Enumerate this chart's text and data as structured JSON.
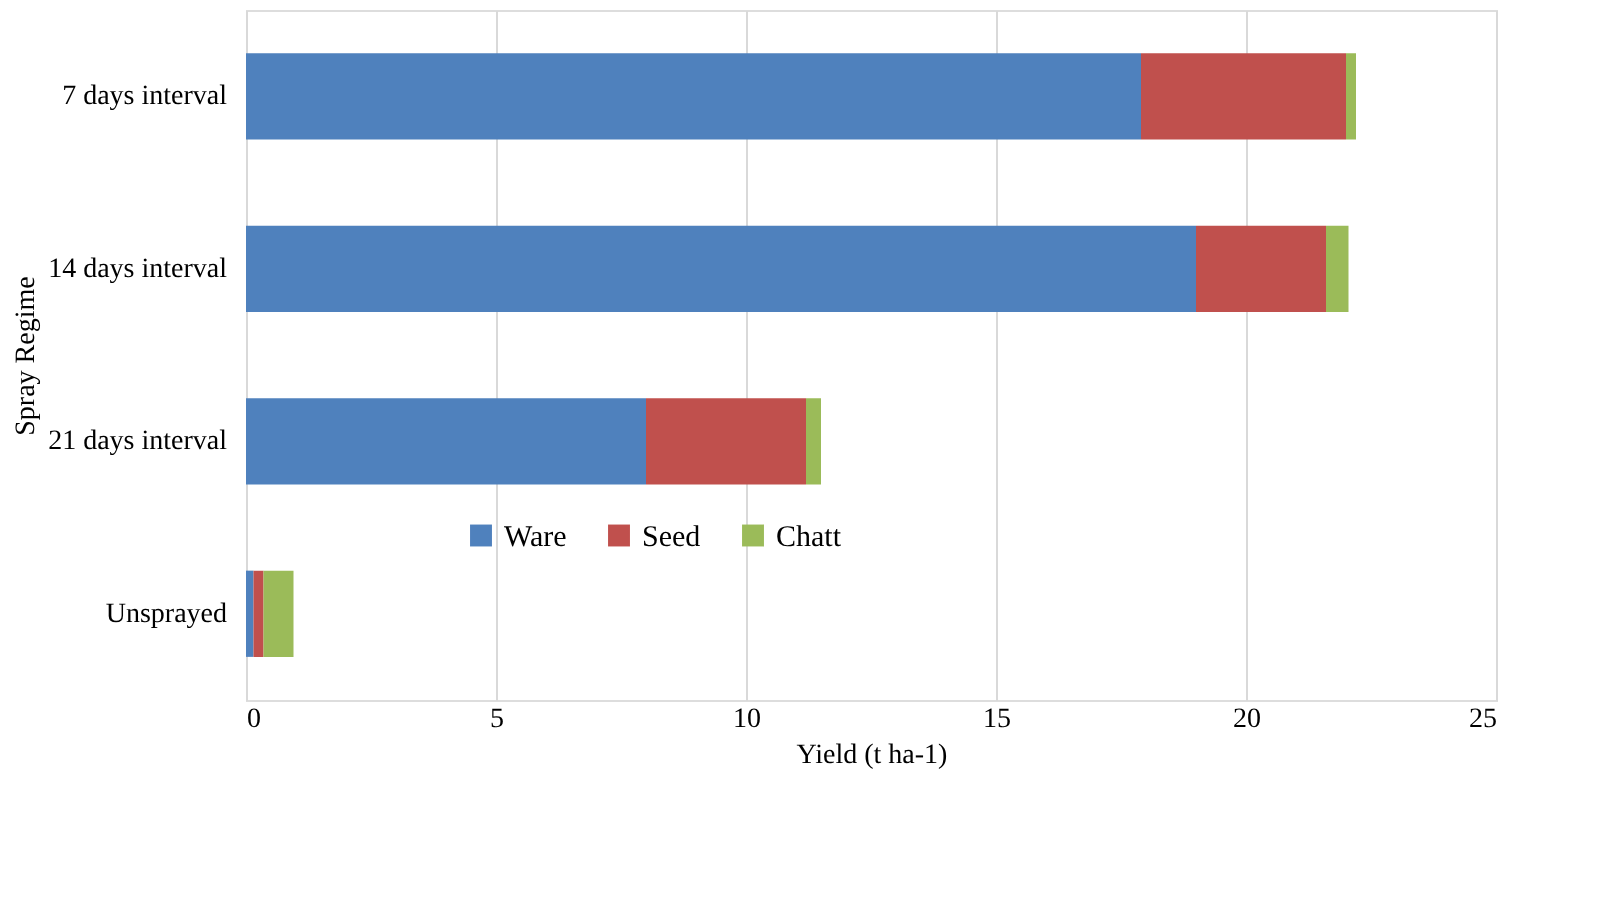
{
  "chart_data": {
    "type": "bar",
    "orientation": "horizontal",
    "stacked": true,
    "xlabel": "Yield (t ha-1)",
    "ylabel": "Spray Regime",
    "categories": [
      "7 days interval",
      "14 days interval",
      "21 days interval",
      "Unsprayed"
    ],
    "series": [
      {
        "name": "Ware",
        "color": "#4f81bd",
        "values": [
          17.9,
          19.0,
          8.0,
          0.15
        ]
      },
      {
        "name": "Seed",
        "color": "#c0504d",
        "values": [
          4.1,
          2.6,
          3.2,
          0.2
        ]
      },
      {
        "name": "Chatt",
        "color": "#9bbb59",
        "values": [
          0.2,
          0.45,
          0.3,
          0.6
        ]
      }
    ],
    "xlim": [
      0,
      25
    ],
    "xticks": [
      0,
      5,
      10,
      15,
      20,
      25
    ],
    "grid": "x",
    "legend": "bottom left"
  }
}
